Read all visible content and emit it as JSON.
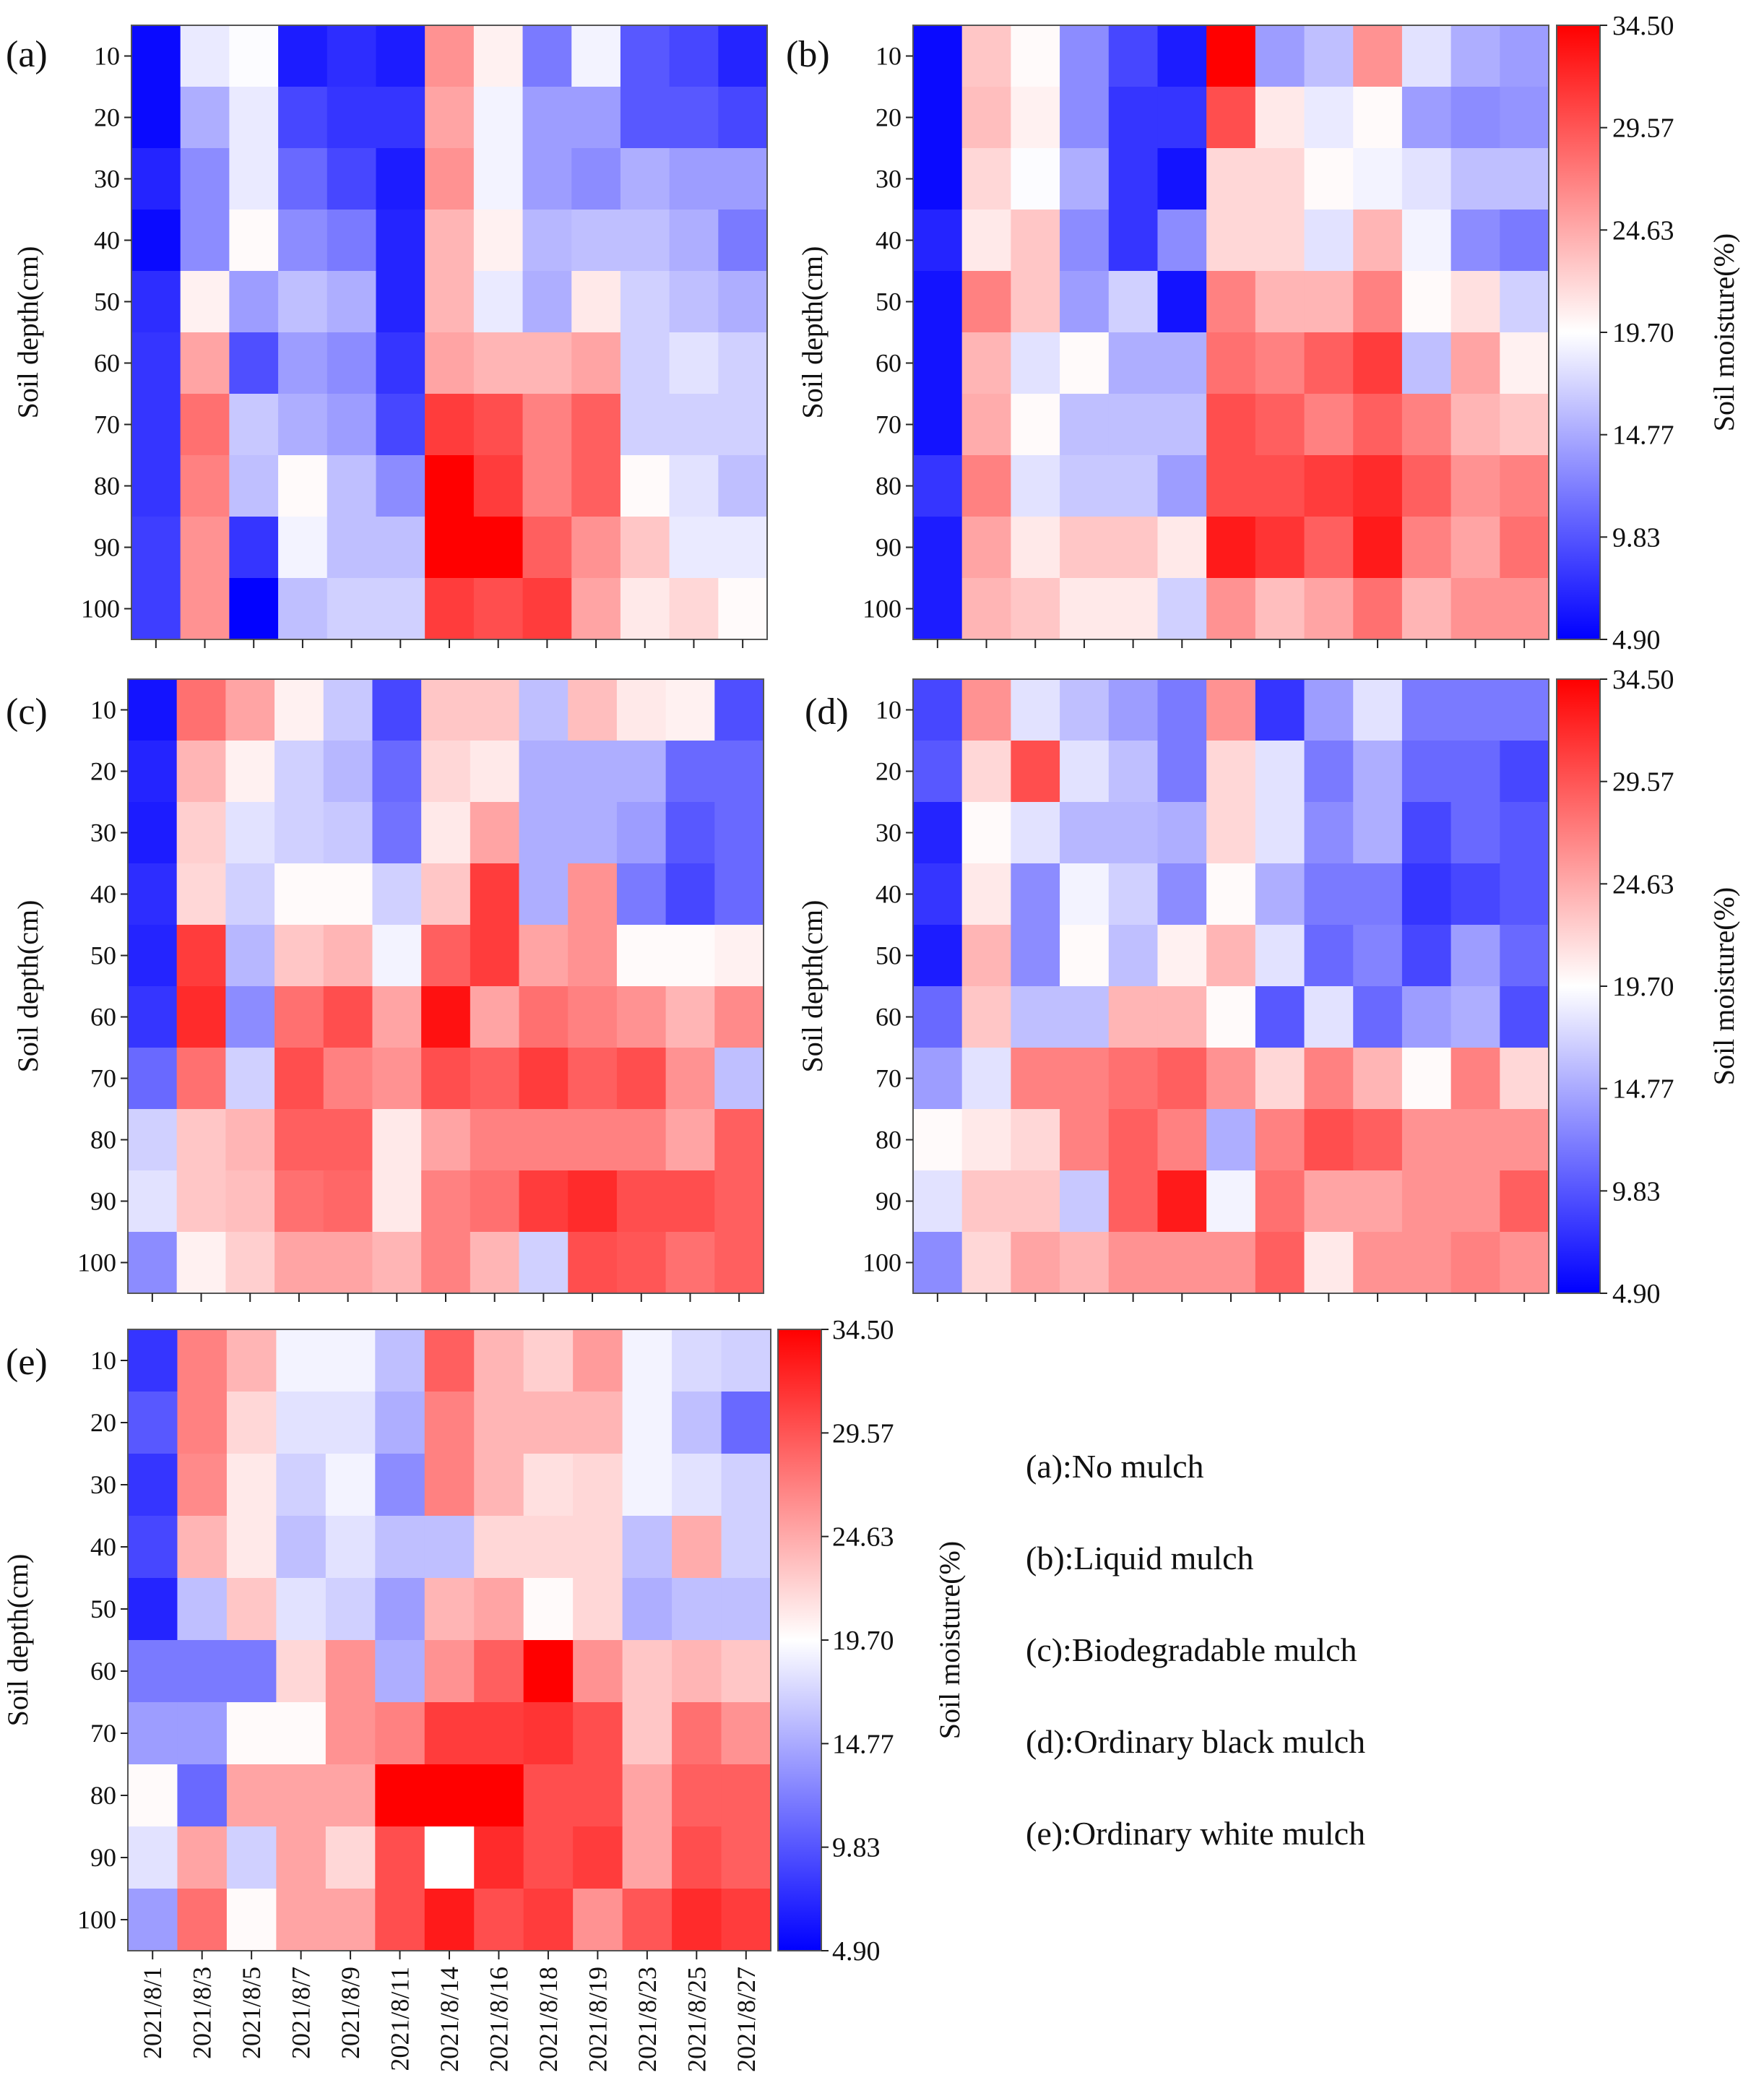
{
  "chart_data": {
    "type": "heatmap",
    "x_categories": [
      "2021/8/1",
      "2021/8/3",
      "2021/8/5",
      "2021/8/7",
      "2021/8/9",
      "2021/8/11",
      "2021/8/14",
      "2021/8/16",
      "2021/8/18",
      "2021/8/19",
      "2021/8/23",
      "2021/8/25",
      "2021/8/27"
    ],
    "y_categories": [
      "10",
      "20",
      "30",
      "40",
      "50",
      "60",
      "70",
      "80",
      "90",
      "100"
    ],
    "ylabel": "Soil depth(cm)",
    "colorbar": {
      "label": "Soil moisture(%)",
      "ticks": [
        "34.50",
        "29.57",
        "24.63",
        "19.70",
        "14.77",
        "9.83",
        "4.90"
      ],
      "min": 4.9,
      "max": 34.5,
      "colors": [
        "#0000ff",
        "#ffffff",
        "#ff0000"
      ]
    },
    "panels": [
      {
        "id": "a",
        "letter": "(a)",
        "values": [
          [
            5.5,
            18.5,
            19.5,
            6.5,
            7.5,
            6.5,
            26.0,
            20.5,
            12.0,
            19.0,
            10.0,
            9.0,
            7.0
          ],
          [
            5.5,
            15.0,
            18.5,
            9.0,
            8.0,
            8.0,
            25.0,
            19.0,
            14.0,
            14.0,
            10.0,
            10.0,
            9.0
          ],
          [
            7.0,
            13.0,
            18.5,
            11.0,
            9.0,
            6.5,
            26.0,
            19.0,
            14.0,
            13.0,
            15.0,
            14.0,
            14.0
          ],
          [
            5.5,
            13.0,
            20.0,
            13.0,
            12.0,
            7.0,
            24.0,
            20.5,
            15.5,
            16.0,
            16.0,
            15.0,
            12.0
          ],
          [
            7.5,
            20.5,
            14.0,
            16.0,
            15.0,
            7.0,
            24.0,
            18.5,
            15.0,
            21.0,
            17.0,
            16.0,
            15.0
          ],
          [
            8.0,
            25.0,
            9.5,
            14.0,
            13.0,
            8.0,
            25.0,
            24.0,
            24.0,
            25.0,
            17.0,
            18.0,
            17.0
          ],
          [
            8.0,
            28.0,
            16.5,
            15.0,
            14.0,
            9.0,
            31.0,
            30.0,
            27.0,
            29.0,
            17.0,
            17.0,
            17.0
          ],
          [
            8.0,
            27.0,
            16.0,
            20.0,
            16.0,
            13.0,
            34.5,
            31.0,
            27.0,
            29.0,
            20.0,
            18.0,
            16.0
          ],
          [
            8.5,
            26.0,
            8.0,
            19.0,
            16.0,
            16.0,
            34.5,
            34.5,
            29.0,
            26.0,
            23.0,
            18.5,
            18.5
          ],
          [
            8.5,
            26.0,
            5.0,
            16.0,
            17.0,
            17.0,
            31.0,
            30.0,
            31.0,
            25.0,
            21.0,
            22.0,
            20.0
          ]
        ]
      },
      {
        "id": "b",
        "letter": "(b)",
        "values": [
          [
            5.5,
            23.0,
            20.0,
            13.0,
            9.0,
            6.5,
            34.5,
            14.0,
            16.0,
            26.0,
            18.0,
            15.0,
            14.0
          ],
          [
            5.5,
            23.5,
            20.5,
            13.0,
            8.0,
            8.0,
            30.0,
            21.0,
            18.5,
            20.0,
            14.0,
            13.0,
            13.5
          ],
          [
            5.5,
            22.0,
            19.5,
            15.0,
            8.0,
            6.0,
            22.0,
            22.0,
            20.0,
            19.0,
            18.0,
            16.0,
            16.0
          ],
          [
            7.0,
            21.0,
            23.0,
            13.0,
            8.0,
            13.0,
            22.0,
            22.0,
            18.0,
            24.0,
            19.0,
            13.0,
            12.0
          ],
          [
            6.0,
            27.0,
            23.0,
            14.0,
            17.0,
            6.0,
            27.0,
            24.0,
            24.0,
            27.0,
            20.0,
            21.5,
            17.0
          ],
          [
            6.0,
            24.0,
            18.0,
            20.0,
            15.0,
            15.0,
            28.0,
            27.0,
            29.0,
            31.0,
            16.0,
            25.0,
            20.5
          ],
          [
            6.0,
            24.5,
            20.0,
            16.0,
            16.0,
            16.0,
            30.0,
            29.0,
            27.0,
            29.0,
            27.0,
            24.0,
            23.0
          ],
          [
            8.0,
            27.0,
            18.0,
            16.5,
            16.5,
            14.0,
            30.0,
            30.0,
            31.0,
            32.0,
            29.0,
            26.0,
            27.0
          ],
          [
            6.5,
            25.0,
            21.0,
            23.0,
            23.0,
            21.0,
            33.0,
            31.5,
            29.0,
            33.0,
            27.0,
            25.0,
            28.0
          ],
          [
            6.5,
            24.0,
            23.0,
            21.0,
            21.0,
            17.0,
            26.0,
            23.5,
            25.0,
            28.0,
            24.0,
            26.0,
            26.0
          ]
        ]
      },
      {
        "id": "c",
        "letter": "(c)",
        "values": [
          [
            6.0,
            28.0,
            25.0,
            20.5,
            16.5,
            9.0,
            23.0,
            23.0,
            16.0,
            23.5,
            21.0,
            20.5,
            9.5
          ],
          [
            7.0,
            24.0,
            20.5,
            17.0,
            15.5,
            11.0,
            22.0,
            21.0,
            15.0,
            15.0,
            15.0,
            11.0,
            11.0
          ],
          [
            6.5,
            22.5,
            18.0,
            17.0,
            16.5,
            11.5,
            21.0,
            25.0,
            15.0,
            15.0,
            14.0,
            10.0,
            11.0
          ],
          [
            7.5,
            22.0,
            17.0,
            20.0,
            20.0,
            17.0,
            23.0,
            31.0,
            15.0,
            26.0,
            12.0,
            9.0,
            11.0
          ],
          [
            7.0,
            31.0,
            15.5,
            23.0,
            24.0,
            19.0,
            29.0,
            31.0,
            25.0,
            26.0,
            20.0,
            20.0,
            20.5
          ],
          [
            8.0,
            32.0,
            13.0,
            28.0,
            30.0,
            25.0,
            33.5,
            25.0,
            28.0,
            27.0,
            26.0,
            24.0,
            26.5
          ],
          [
            11.0,
            28.0,
            17.0,
            30.0,
            27.0,
            26.0,
            30.0,
            29.0,
            31.0,
            29.0,
            30.0,
            26.0,
            16.0
          ],
          [
            17.0,
            23.0,
            24.0,
            29.0,
            29.0,
            21.0,
            25.0,
            27.0,
            27.0,
            27.0,
            27.0,
            25.0,
            29.0
          ],
          [
            18.0,
            23.0,
            23.5,
            28.0,
            28.5,
            21.0,
            27.0,
            28.0,
            31.0,
            32.0,
            30.0,
            30.0,
            29.0
          ],
          [
            13.0,
            20.5,
            22.5,
            25.0,
            25.0,
            24.0,
            27.0,
            24.0,
            17.0,
            30.0,
            29.5,
            28.0,
            29.0
          ]
        ]
      },
      {
        "id": "d",
        "letter": "(d)",
        "values": [
          [
            9.0,
            26.0,
            18.0,
            16.0,
            14.0,
            12.0,
            26.0,
            8.0,
            14.0,
            18.0,
            12.0,
            12.0,
            12.0
          ],
          [
            10.0,
            22.0,
            30.0,
            18.0,
            16.0,
            12.0,
            22.0,
            18.0,
            12.0,
            15.0,
            11.0,
            11.0,
            9.0
          ],
          [
            7.0,
            20.0,
            18.0,
            15.5,
            15.5,
            15.0,
            22.0,
            18.0,
            13.0,
            15.0,
            9.0,
            11.0,
            10.0
          ],
          [
            8.0,
            21.0,
            13.0,
            19.0,
            17.0,
            13.0,
            20.0,
            15.0,
            12.0,
            12.0,
            8.0,
            9.0,
            10.0
          ],
          [
            6.5,
            24.0,
            13.0,
            20.0,
            16.0,
            20.5,
            24.0,
            18.0,
            11.0,
            12.5,
            9.0,
            14.0,
            11.0
          ],
          [
            11.0,
            23.0,
            16.0,
            16.0,
            24.0,
            24.0,
            20.0,
            10.0,
            18.0,
            11.0,
            14.0,
            15.0,
            9.5
          ],
          [
            14.0,
            18.0,
            27.0,
            27.0,
            28.0,
            29.0,
            26.0,
            22.0,
            27.0,
            24.0,
            20.0,
            27.0,
            22.0
          ],
          [
            20.0,
            21.0,
            22.0,
            27.0,
            29.0,
            27.0,
            15.0,
            27.0,
            30.0,
            29.0,
            26.0,
            26.0,
            26.0
          ],
          [
            18.0,
            23.0,
            23.0,
            16.5,
            29.0,
            33.0,
            19.0,
            28.0,
            25.0,
            25.0,
            26.0,
            26.0,
            29.0
          ],
          [
            13.0,
            22.0,
            25.0,
            24.0,
            26.0,
            26.0,
            26.0,
            29.0,
            21.0,
            26.0,
            26.0,
            27.0,
            26.0
          ]
        ]
      },
      {
        "id": "e",
        "letter": "(e)",
        "values": [
          [
            8.0,
            27.0,
            24.0,
            19.0,
            19.0,
            16.0,
            29.0,
            24.0,
            22.5,
            25.5,
            19.0,
            17.5,
            17.0
          ],
          [
            10.0,
            27.0,
            22.0,
            18.0,
            18.0,
            15.0,
            27.0,
            24.0,
            24.0,
            24.0,
            19.0,
            16.0,
            11.0
          ],
          [
            8.0,
            26.5,
            21.0,
            17.0,
            19.0,
            13.0,
            27.0,
            24.0,
            21.5,
            22.0,
            19.0,
            18.0,
            17.0
          ],
          [
            9.0,
            24.0,
            21.0,
            16.0,
            18.0,
            16.0,
            16.0,
            22.0,
            22.0,
            22.0,
            16.0,
            24.5,
            17.0
          ],
          [
            7.0,
            16.0,
            23.0,
            18.0,
            17.0,
            14.0,
            24.0,
            25.0,
            20.0,
            22.0,
            15.0,
            16.0,
            16.0
          ],
          [
            12.0,
            12.0,
            12.0,
            22.0,
            26.0,
            15.0,
            26.0,
            29.0,
            34.5,
            26.0,
            23.0,
            24.0,
            23.0
          ],
          [
            14.0,
            14.0,
            20.0,
            20.0,
            26.0,
            27.0,
            31.0,
            31.0,
            31.5,
            30.0,
            23.0,
            28.0,
            26.0
          ],
          [
            20.0,
            11.0,
            25.0,
            25.0,
            25.0,
            34.5,
            34.5,
            34.5,
            30.0,
            30.0,
            25.0,
            29.0,
            29.0
          ],
          [
            18.0,
            25.0,
            17.0,
            25.0,
            22.0,
            30.0,
            19.7,
            32.0,
            30.0,
            31.0,
            25.0,
            30.0,
            29.0
          ],
          [
            14.0,
            28.0,
            20.0,
            25.0,
            25.0,
            30.0,
            33.0,
            30.0,
            31.0,
            26.0,
            29.5,
            32.0,
            31.0
          ]
        ]
      }
    ],
    "legend": [
      "(a):No mulch",
      "(b):Liquid mulch",
      "(c):Biodegradable mulch",
      "(d):Ordinary black mulch",
      "(e):Ordinary white mulch"
    ]
  }
}
